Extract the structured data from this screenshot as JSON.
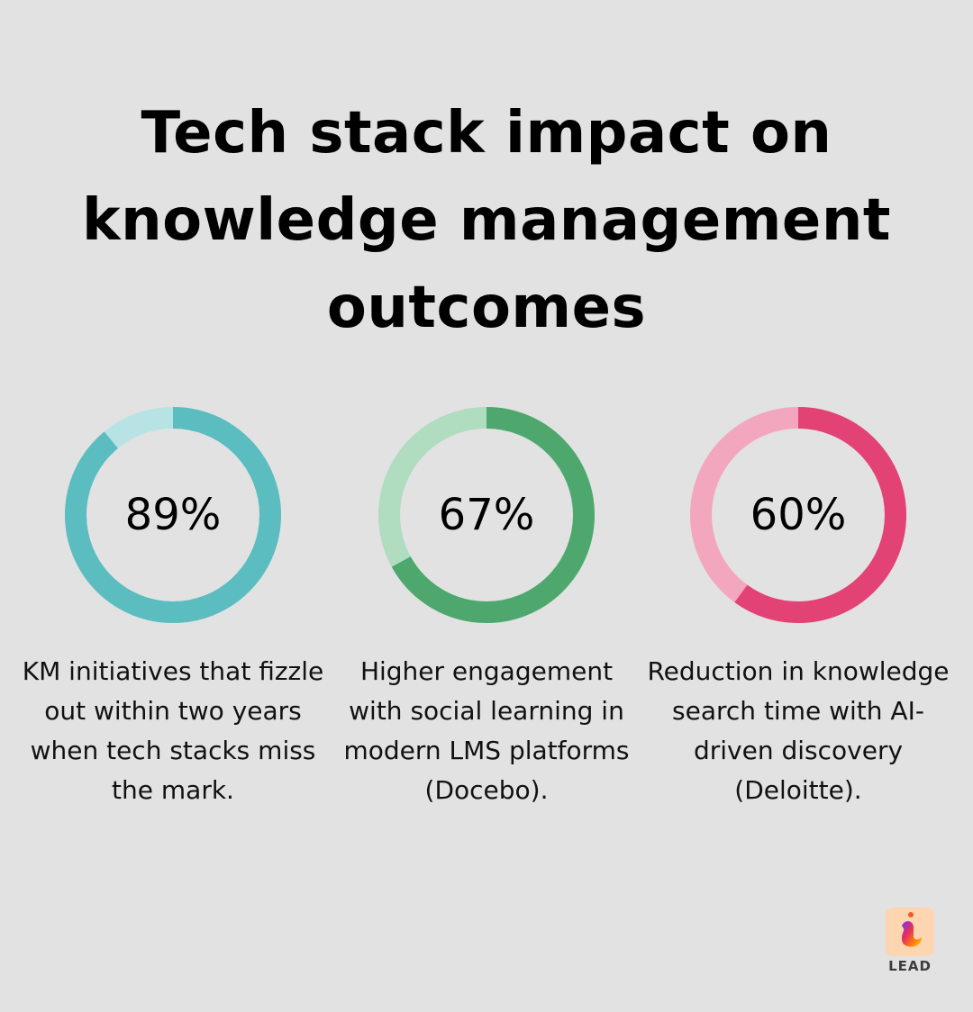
{
  "title": "Tech stack impact on knowledge management outcomes",
  "title_lines": [
    "Tech stack impact on",
    "knowledge management",
    "outcomes"
  ],
  "stats": [
    {
      "value": "89%",
      "percent": 89,
      "label": "KM initiatives that fizzle out within two years when tech stacks miss the mark.",
      "color": "#5bbdc0",
      "track_color": "#b8e3e5"
    },
    {
      "value": "67%",
      "percent": 67,
      "label": "Higher engagement with social learning in modern LMS platforms (Docebo).",
      "color": "#4ea86e",
      "track_color": "#b0dcc0"
    },
    {
      "value": "60%",
      "percent": 60,
      "label": "Reduction in knowledge search time with AI-driven discovery (Deloitte).",
      "color": "#e34274",
      "track_color": "#f3a7bf"
    }
  ],
  "logo": {
    "text": "LEAD",
    "icon": "lead-logo-icon"
  },
  "chart_data": {
    "type": "pie",
    "title": "Tech stack impact on knowledge management outcomes",
    "charts": [
      {
        "kind": "donut",
        "value": 89,
        "label": "KM initiatives that fizzle out within two years when tech stacks miss the mark."
      },
      {
        "kind": "donut",
        "value": 67,
        "label": "Higher engagement with social learning in modern LMS platforms (Docebo)."
      },
      {
        "kind": "donut",
        "value": 60,
        "label": "Reduction in knowledge search time with AI-driven discovery (Deloitte)."
      }
    ],
    "unit": "%"
  }
}
